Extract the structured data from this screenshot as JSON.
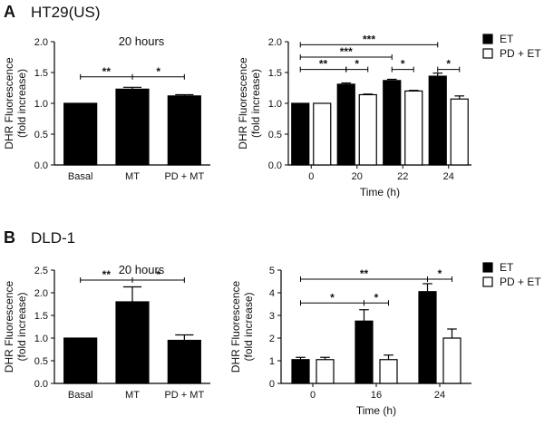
{
  "panels": [
    {
      "letter": "A",
      "cell_line": "HT29(US)"
    },
    {
      "letter": "B",
      "cell_line": "DLD-1"
    }
  ],
  "legend_text": {
    "et": "ET",
    "pd_et": "PD + ET"
  },
  "chart_data": [
    {
      "type": "bar",
      "panel": "A",
      "subtitle": "20 hours",
      "ylabel": [
        "DHR Fluorescence",
        "(fold increase)"
      ],
      "xlabel": "",
      "ylim": [
        0,
        2.0
      ],
      "yticks": [
        0.0,
        0.5,
        1.0,
        1.5,
        2.0
      ],
      "categories": [
        "Basal",
        "MT",
        "PD + MT"
      ],
      "values": [
        1.0,
        1.23,
        1.12
      ],
      "errors": [
        0.0,
        0.03,
        0.02
      ],
      "colors": [
        "#000000",
        "#000000",
        "#000000"
      ],
      "significance": [
        {
          "from": 0,
          "to": 1,
          "label": "**",
          "y": 1.43
        },
        {
          "from": 1,
          "to": 2,
          "label": "*",
          "y": 1.43
        }
      ]
    },
    {
      "type": "bar",
      "panel": "A",
      "xlabel": "Time (h)",
      "ylabel": [
        "DHR Fluorescence",
        "(fold increase)"
      ],
      "ylim": [
        0,
        2.0
      ],
      "yticks": [
        0.0,
        0.5,
        1.0,
        1.5,
        2.0
      ],
      "ytick_format": 1,
      "categories": [
        "0",
        "20",
        "22",
        "24"
      ],
      "series": [
        {
          "name": "ET",
          "color": "#000000",
          "values": [
            1.0,
            1.31,
            1.37,
            1.44
          ],
          "errors": [
            0.0,
            0.02,
            0.02,
            0.05
          ]
        },
        {
          "name": "PD + ET",
          "color": "#ffffff",
          "values": [
            1.0,
            1.14,
            1.2,
            1.07
          ],
          "errors": [
            0.0,
            0.01,
            0.01,
            0.05
          ]
        }
      ],
      "legend": "top-right",
      "significance": [
        {
          "from": [
            0,
            0
          ],
          "to": [
            3,
            0
          ],
          "label": "***",
          "y": 1.95
        },
        {
          "from": [
            0,
            0
          ],
          "to": [
            2,
            0
          ],
          "label": "***",
          "y": 1.75
        },
        {
          "from": [
            0,
            0
          ],
          "to": [
            1,
            0
          ],
          "label": "**",
          "y": 1.55
        },
        {
          "from": [
            1,
            0
          ],
          "to": [
            1,
            1
          ],
          "label": "*",
          "y": 1.55
        },
        {
          "from": [
            2,
            0
          ],
          "to": [
            2,
            1
          ],
          "label": "*",
          "y": 1.55
        },
        {
          "from": [
            3,
            0
          ],
          "to": [
            3,
            1
          ],
          "label": "*",
          "y": 1.55
        }
      ]
    },
    {
      "type": "bar",
      "panel": "B",
      "subtitle": "20 hours",
      "ylabel": [
        "DHR Fluorescence",
        "(fold increase)"
      ],
      "xlabel": "",
      "ylim": [
        0,
        2.5
      ],
      "yticks": [
        0.0,
        0.5,
        1.0,
        1.5,
        2.0,
        2.5
      ],
      "categories": [
        "Basal",
        "MT",
        "PD + MT"
      ],
      "values": [
        1.0,
        1.8,
        0.95
      ],
      "errors": [
        0.0,
        0.33,
        0.12
      ],
      "colors": [
        "#000000",
        "#000000",
        "#000000"
      ],
      "significance": [
        {
          "from": 0,
          "to": 1,
          "label": "**",
          "y": 2.28
        },
        {
          "from": 1,
          "to": 2,
          "label": "*",
          "y": 2.28
        }
      ]
    },
    {
      "type": "bar",
      "panel": "B",
      "xlabel": "Time (h)",
      "ylabel": [
        "DHR Fluorescence",
        "(fold increase)"
      ],
      "ylim": [
        0,
        5
      ],
      "yticks": [
        0,
        1,
        2,
        3,
        4,
        5
      ],
      "ytick_format": 0,
      "categories": [
        "0",
        "16",
        "24"
      ],
      "series": [
        {
          "name": "ET",
          "color": "#000000",
          "values": [
            1.05,
            2.75,
            4.05
          ],
          "errors": [
            0.1,
            0.5,
            0.35
          ]
        },
        {
          "name": "PD + ET",
          "color": "#ffffff",
          "values": [
            1.05,
            1.05,
            2.0
          ],
          "errors": [
            0.1,
            0.2,
            0.4
          ]
        }
      ],
      "legend": "top-right",
      "significance": [
        {
          "from": [
            0,
            0
          ],
          "to": [
            2,
            0
          ],
          "label": "**",
          "y": 4.6
        },
        {
          "from": [
            2,
            0
          ],
          "to": [
            2,
            1
          ],
          "label": "*",
          "y": 4.6
        },
        {
          "from": [
            0,
            0
          ],
          "to": [
            1,
            0
          ],
          "label": "*",
          "y": 3.55
        },
        {
          "from": [
            1,
            0
          ],
          "to": [
            1,
            1
          ],
          "label": "*",
          "y": 3.55
        }
      ]
    }
  ]
}
